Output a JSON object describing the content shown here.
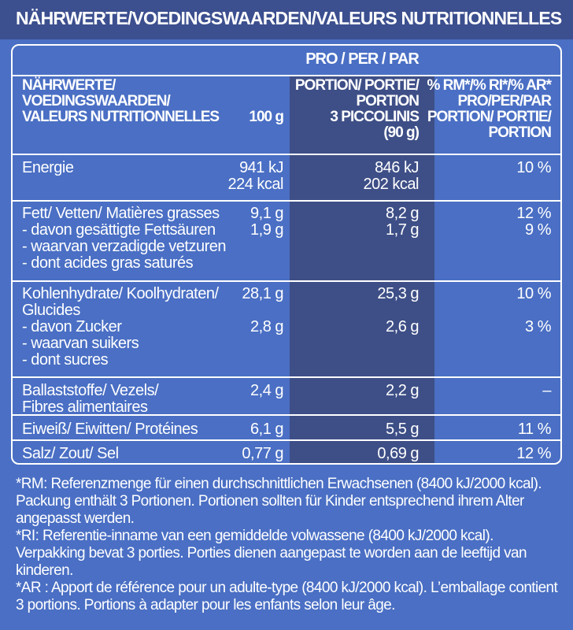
{
  "title": "NÄHRWERTE/VOEDINGSWAARDEN/VALEURS NUTRITIONNELLES",
  "table": {
    "per_label": "PRO / PER / PAR",
    "col_headers": {
      "nutrient": [
        "NÄHRWERTE/",
        "VOEDINGSWAARDEN/",
        "VALEURS NUTRITIONNELLES"
      ],
      "per100": "100 g",
      "portion": [
        "PORTION/ PORTIE/",
        "PORTION",
        "3 PICCOLINIS",
        "(90 g)"
      ],
      "ri": [
        "% RM*/% RI*/% AR*",
        "PRO/PER/PAR",
        "PORTION/ PORTIE/",
        "PORTION"
      ]
    },
    "rows": {
      "energy": {
        "label": "Energie",
        "per100": [
          "941 kJ",
          "224 kcal"
        ],
        "portion": [
          "846 kJ",
          "202 kcal"
        ],
        "ri": "10 %"
      },
      "fat": {
        "label": "Fett/ Vetten/ Matières grasses",
        "per100": "9,1 g",
        "portion": "8,2 g",
        "ri": "12 %",
        "sub": {
          "labels": [
            "- davon gesättigte Fettsäuren",
            "- waarvan verzadigde vetzuren",
            "- dont acides gras saturés"
          ],
          "per100": "1,9 g",
          "portion": "1,7 g",
          "ri": "9 %"
        }
      },
      "carbs": {
        "labels": [
          "Kohlenhydrate/ Koolhydraten/",
          "Glucides"
        ],
        "per100": "28,1 g",
        "portion": "25,3 g",
        "ri": "10 %",
        "sub": {
          "labels": [
            "- davon Zucker",
            "- waarvan suikers",
            "- dont sucres"
          ],
          "per100": "2,8 g",
          "portion": "2,6 g",
          "ri": "3 %"
        }
      },
      "fibre": {
        "labels": [
          "Ballaststoffe/ Vezels/",
          "Fibres alimentaires"
        ],
        "per100": "2,4 g",
        "portion": "2,2 g",
        "ri": "–"
      },
      "protein": {
        "label": "Eiweiß/ Eiwitten/ Protéines",
        "per100": "6,1 g",
        "portion": "5,5 g",
        "ri": "11 %"
      },
      "salt": {
        "label": "Salz/ Zout/ Sel",
        "per100": "0,77 g",
        "portion": "0,69 g",
        "ri": "12 %"
      }
    }
  },
  "footnotes": [
    [
      "*RM: Referenzmenge für einen durchschnittlichen Erwachsenen (8400 kJ/2000 kcal).",
      "Packung enthält 3 Portionen. Portionen sollten für Kinder entsprechend ihrem Alter",
      "angepasst werden."
    ],
    [
      "*RI: Referentie-inname van een gemiddelde volwassene (8400 kJ/2000 kcal).",
      "Verpakking bevat 3 porties. Porties dienen aangepast te worden aan de leeftijd van",
      "kinderen."
    ],
    [
      "*AR : Apport de référence pour un adulte-type (8400 kJ/2000 kcal). L’emballage contient",
      "3 portions. Portions à adapter pour les enfants selon leur âge."
    ]
  ]
}
